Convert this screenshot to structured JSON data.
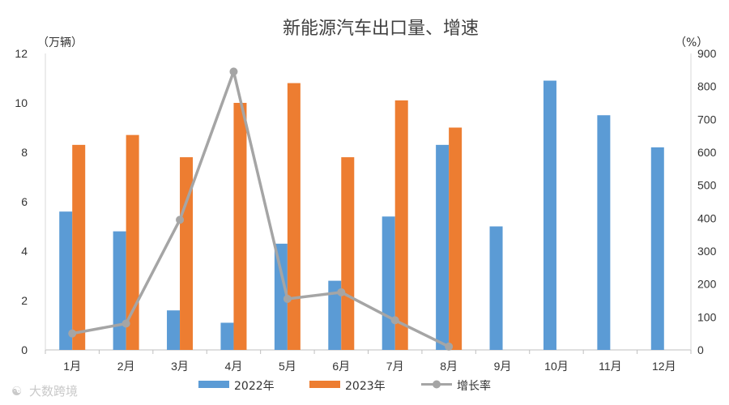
{
  "chart_data": {
    "type": "bar",
    "title": "新能源汽车出口量、增速",
    "ylabel_left": "（万辆）",
    "ylabel_right": "（%）",
    "categories": [
      "1月",
      "2月",
      "3月",
      "4月",
      "5月",
      "6月",
      "7月",
      "8月",
      "9月",
      "10月",
      "11月",
      "12月"
    ],
    "ylim_left": [
      0,
      12
    ],
    "yticks_left": [
      0,
      2,
      4,
      6,
      8,
      10,
      12
    ],
    "ylim_right": [
      0,
      900
    ],
    "yticks_right": [
      0,
      100,
      200,
      300,
      400,
      500,
      600,
      700,
      800,
      900
    ],
    "grid": false,
    "legend_position": "bottom",
    "series": [
      {
        "name": "2022年",
        "kind": "bar",
        "axis": "left",
        "color": "#5b9bd5",
        "values": [
          5.6,
          4.8,
          1.6,
          1.1,
          4.3,
          2.8,
          5.4,
          8.3,
          5.0,
          10.9,
          9.5,
          8.2
        ]
      },
      {
        "name": "2023年",
        "kind": "bar",
        "axis": "left",
        "color": "#ed7d31",
        "values": [
          8.3,
          8.7,
          7.8,
          10.0,
          10.8,
          7.8,
          10.1,
          9.0,
          null,
          null,
          null,
          null
        ]
      },
      {
        "name": "增长率",
        "kind": "line",
        "axis": "right",
        "color": "#a5a5a5",
        "values": [
          50,
          80,
          395,
          845,
          155,
          175,
          90,
          10,
          null,
          null,
          null,
          null
        ]
      }
    ]
  },
  "watermark": {
    "text": "大数跨境"
  }
}
